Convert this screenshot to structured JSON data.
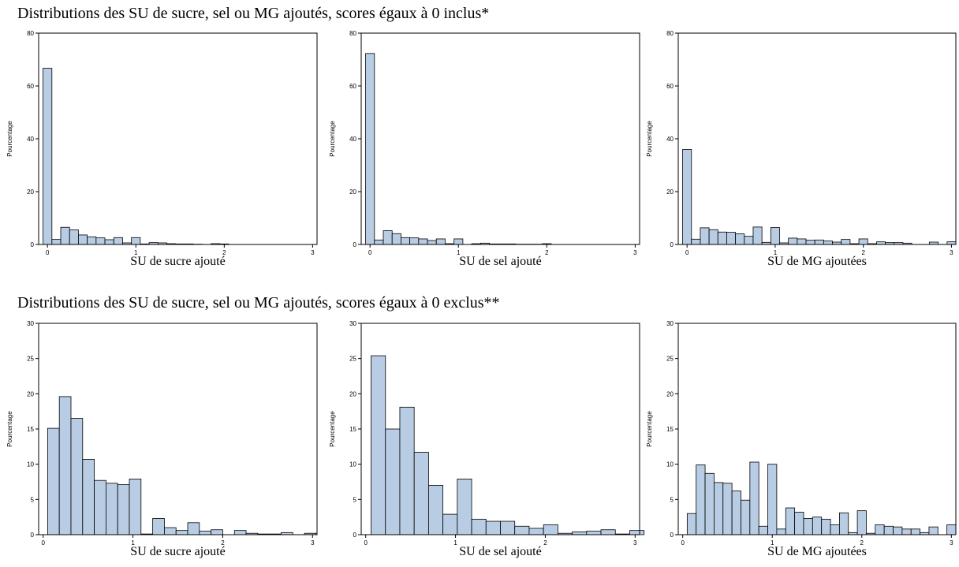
{
  "sections": {
    "top_title": "Distributions des SU de sucre, sel ou MG ajoutés, scores égaux  à 0 inclus*",
    "bottom_title": "Distributions des SU de sucre, sel ou MG ajoutés, scores égaux  à 0 exclus**"
  },
  "colors": {
    "bar_fill": "#b8cce4",
    "bar_stroke": "#000000",
    "axis": "#000000"
  },
  "chart_data": [
    {
      "type": "bar",
      "title": "",
      "xlabel": "SU de sucre ajouté",
      "ylabel": "Pourcentage",
      "ylim": [
        0,
        80
      ],
      "yticks": [
        0,
        20,
        40,
        60,
        80
      ],
      "xlim": [
        -0.1,
        3.05
      ],
      "xticks": [
        0,
        1,
        2,
        3
      ],
      "bin_width": 0.1,
      "bin_starts": [
        -0.05,
        0.05,
        0.15,
        0.25,
        0.35,
        0.45,
        0.55,
        0.65,
        0.75,
        0.85,
        0.95,
        1.05,
        1.15,
        1.25,
        1.35,
        1.45,
        1.55,
        1.65,
        1.75,
        1.85,
        1.95,
        2.05,
        2.15,
        2.25,
        2.35,
        2.45,
        2.55,
        2.65,
        2.75,
        2.85,
        2.95
      ],
      "values": [
        66.7,
        1.9,
        6.5,
        5.5,
        3.6,
        2.9,
        2.5,
        1.8,
        2.6,
        0.6,
        2.6,
        0.2,
        0.7,
        0.6,
        0.3,
        0.2,
        0.2,
        0.1,
        0.0,
        0.3,
        0.2,
        0.0,
        0.0,
        0.0,
        0.0,
        0.0,
        0.0,
        0.0,
        0.0,
        0.0,
        0.0
      ]
    },
    {
      "type": "bar",
      "title": "",
      "xlabel": "SU de sel  ajouté",
      "ylabel": "Pourcentage",
      "ylim": [
        0,
        80
      ],
      "yticks": [
        0,
        20,
        40,
        60,
        80
      ],
      "xlim": [
        -0.1,
        3.05
      ],
      "xticks": [
        0,
        1,
        2,
        3
      ],
      "bin_width": 0.1,
      "bin_starts": [
        -0.05,
        0.05,
        0.15,
        0.25,
        0.35,
        0.45,
        0.55,
        0.65,
        0.75,
        0.85,
        0.95,
        1.05,
        1.15,
        1.25,
        1.35,
        1.45,
        1.55,
        1.65,
        1.75,
        1.85,
        1.95,
        2.05,
        2.15,
        2.25,
        2.35,
        2.45,
        2.55,
        2.65,
        2.75,
        2.85,
        2.95
      ],
      "values": [
        72.3,
        1.7,
        5.2,
        4.1,
        2.6,
        2.5,
        2.1,
        1.5,
        2.1,
        0.3,
        2.1,
        0.0,
        0.3,
        0.5,
        0.2,
        0.2,
        0.2,
        0.1,
        0.1,
        0.1,
        0.3,
        0.0,
        0.0,
        0.0,
        0.0,
        0.0,
        0.0,
        0.0,
        0.0,
        0.0,
        0.0
      ]
    },
    {
      "type": "bar",
      "title": "",
      "xlabel": "SU de MG ajoutées",
      "ylabel": "Pourcentage",
      "ylim": [
        0,
        80
      ],
      "yticks": [
        0,
        20,
        40,
        60,
        80
      ],
      "xlim": [
        -0.1,
        3.05
      ],
      "xticks": [
        0,
        1,
        2,
        3
      ],
      "bin_width": 0.1,
      "bin_starts": [
        -0.05,
        0.05,
        0.15,
        0.25,
        0.35,
        0.45,
        0.55,
        0.65,
        0.75,
        0.85,
        0.95,
        1.05,
        1.15,
        1.25,
        1.35,
        1.45,
        1.55,
        1.65,
        1.75,
        1.85,
        1.95,
        2.05,
        2.15,
        2.25,
        2.35,
        2.45,
        2.55,
        2.65,
        2.75,
        2.85,
        2.95
      ],
      "values": [
        36.0,
        2.0,
        6.3,
        5.6,
        4.7,
        4.6,
        4.0,
        3.1,
        6.6,
        0.8,
        6.4,
        0.6,
        2.4,
        2.1,
        1.6,
        1.7,
        1.3,
        0.9,
        1.9,
        0.3,
        2.1,
        0.3,
        1.0,
        0.7,
        0.7,
        0.5,
        0.0,
        0.0,
        0.9,
        0.0,
        1.0
      ]
    },
    {
      "type": "bar",
      "title": "",
      "xlabel": "SU de sucre ajouté",
      "ylabel": "Pourcentage",
      "ylim": [
        0,
        30
      ],
      "yticks": [
        0,
        5,
        10,
        15,
        20,
        25,
        30
      ],
      "xlim": [
        -0.05,
        3.05
      ],
      "xticks": [
        0,
        1,
        2,
        3
      ],
      "bin_starts": [
        0.05,
        0.18,
        0.31,
        0.44,
        0.57,
        0.7,
        0.83,
        0.96,
        1.09,
        1.22,
        1.35,
        1.48,
        1.61,
        1.74,
        1.87,
        2.0,
        2.13,
        2.26,
        2.39,
        2.52,
        2.65,
        2.78,
        2.91
      ],
      "bin_width": 0.13,
      "values": [
        15.1,
        19.6,
        16.5,
        10.7,
        7.7,
        7.3,
        7.1,
        7.9,
        0.1,
        2.3,
        1.0,
        0.6,
        1.7,
        0.5,
        0.7,
        0.0,
        0.6,
        0.2,
        0.1,
        0.1,
        0.3,
        0.0,
        0.2
      ]
    },
    {
      "type": "bar",
      "title": "",
      "xlabel": "SU de sel  ajouté",
      "ylabel": "Pourcentage",
      "ylim": [
        0,
        30
      ],
      "yticks": [
        0,
        5,
        10,
        15,
        20,
        25,
        30
      ],
      "xlim": [
        -0.05,
        3.05
      ],
      "xticks": [
        0,
        1,
        2,
        3
      ],
      "bin_starts": [
        0.06,
        0.22,
        0.38,
        0.54,
        0.7,
        0.86,
        1.02,
        1.18,
        1.34,
        1.5,
        1.66,
        1.82,
        1.98,
        2.14,
        2.3,
        2.46,
        2.62,
        2.78,
        2.94
      ],
      "bin_width": 0.16,
      "values": [
        25.4,
        15.0,
        18.1,
        11.7,
        7.0,
        2.9,
        7.9,
        2.2,
        1.9,
        1.9,
        1.2,
        0.9,
        1.4,
        0.2,
        0.4,
        0.5,
        0.7,
        0.1,
        0.6
      ]
    },
    {
      "type": "bar",
      "title": "",
      "xlabel": "SU de MG ajoutées",
      "ylabel": "Pourcentage",
      "ylim": [
        0,
        30
      ],
      "yticks": [
        0,
        5,
        10,
        15,
        20,
        25,
        30
      ],
      "xlim": [
        -0.05,
        3.05
      ],
      "xticks": [
        0,
        1,
        2,
        3
      ],
      "bin_starts": [
        0.05,
        0.15,
        0.25,
        0.35,
        0.45,
        0.55,
        0.65,
        0.75,
        0.85,
        0.95,
        1.05,
        1.15,
        1.25,
        1.35,
        1.45,
        1.55,
        1.65,
        1.75,
        1.85,
        1.95,
        2.05,
        2.15,
        2.25,
        2.35,
        2.45,
        2.55,
        2.65,
        2.75,
        2.85,
        2.95
      ],
      "bin_width": 0.1,
      "values": [
        3.0,
        9.9,
        8.7,
        7.4,
        7.3,
        6.2,
        4.9,
        10.3,
        1.2,
        10.0,
        0.8,
        3.8,
        3.2,
        2.3,
        2.5,
        2.2,
        1.4,
        3.1,
        0.3,
        3.4,
        0.2,
        1.4,
        1.2,
        1.1,
        0.8,
        0.8,
        0.3,
        1.1,
        0.0,
        1.4
      ]
    }
  ]
}
